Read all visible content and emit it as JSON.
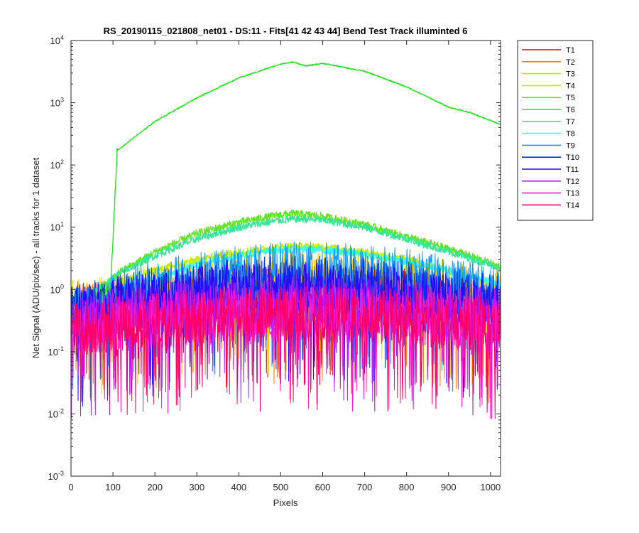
{
  "chart_data": {
    "type": "line",
    "title": "RS_20190115_021808_net01 - DS:11 - Fits[41  42  43  44]   Bend Test       Track illuminted 6",
    "xlabel": "Pixels",
    "ylabel": "Net Signal (ADU/pix/sec) - all tracks for 1 dataset",
    "xlim": [
      0,
      1024
    ],
    "ylim": [
      0.001,
      10000
    ],
    "yscale": "log",
    "grid": false,
    "legend_position": "outside-right",
    "x_ticks": [
      "0",
      "100",
      "200",
      "300",
      "400",
      "500",
      "600",
      "700",
      "800",
      "900",
      "1000"
    ],
    "y_ticks": [
      {
        "base": "10",
        "exp": "-3"
      },
      {
        "base": "10",
        "exp": "-2"
      },
      {
        "base": "10",
        "exp": "-1"
      },
      {
        "base": "10",
        "exp": "0"
      },
      {
        "base": "10",
        "exp": "1"
      },
      {
        "base": "10",
        "exp": "2"
      },
      {
        "base": "10",
        "exp": "3"
      },
      {
        "base": "10",
        "exp": "4"
      }
    ],
    "x_sample": [
      0,
      50,
      95,
      110,
      200,
      300,
      400,
      500,
      530,
      560,
      600,
      700,
      800,
      900,
      950,
      1024
    ],
    "series": [
      {
        "name": "T1",
        "color": "#e6001a",
        "values": [
          0.4,
          0.5,
          0.55,
          0.6,
          0.7,
          0.8,
          0.85,
          0.9,
          0.9,
          0.9,
          0.9,
          0.85,
          0.8,
          0.7,
          0.6,
          0.5
        ]
      },
      {
        "name": "T2",
        "color": "#ff7f00",
        "values": [
          0.45,
          0.5,
          0.55,
          0.6,
          0.7,
          0.8,
          0.9,
          0.95,
          0.95,
          0.95,
          0.95,
          0.9,
          0.85,
          0.75,
          0.65,
          0.5
        ]
      },
      {
        "name": "T3",
        "color": "#ffcc00",
        "values": [
          0.55,
          0.6,
          0.7,
          0.8,
          1.0,
          1.3,
          1.6,
          1.8,
          1.8,
          1.8,
          1.8,
          1.7,
          1.5,
          1.2,
          1.0,
          0.8
        ]
      },
      {
        "name": "T4",
        "color": "#bfef00",
        "values": [
          0.6,
          0.8,
          1.0,
          1.3,
          2.0,
          3.0,
          4.0,
          4.8,
          5.0,
          4.9,
          4.8,
          4.0,
          3.0,
          2.0,
          1.6,
          1.2
        ]
      },
      {
        "name": "T5",
        "color": "#5fe61a",
        "values": [
          0.6,
          0.9,
          1.4,
          1.8,
          4.0,
          8.0,
          12.0,
          16.0,
          16.5,
          16.0,
          15.0,
          11.0,
          7.0,
          4.5,
          3.5,
          2.3
        ]
      },
      {
        "name": "T6",
        "color": "#1fe61a",
        "values": [
          0.4,
          0.6,
          1.2,
          170,
          500,
          1200,
          2500,
          4200,
          4500,
          3900,
          4300,
          3200,
          1800,
          850,
          700,
          450
        ]
      },
      {
        "name": "T7",
        "color": "#33e699",
        "values": [
          0.7,
          0.9,
          1.3,
          1.7,
          3.5,
          6.5,
          10.0,
          13.0,
          13.5,
          13.5,
          13.0,
          10.0,
          6.5,
          4.0,
          3.2,
          2.2
        ]
      },
      {
        "name": "T8",
        "color": "#33ffe6",
        "values": [
          0.5,
          0.6,
          0.8,
          1.0,
          1.5,
          2.5,
          3.5,
          4.3,
          4.4,
          4.4,
          4.3,
          3.6,
          2.8,
          2.0,
          1.7,
          1.2
        ]
      },
      {
        "name": "T9",
        "color": "#1a99ff",
        "values": [
          0.5,
          0.6,
          0.7,
          0.8,
          1.2,
          1.6,
          2.0,
          2.3,
          2.3,
          2.3,
          2.3,
          2.1,
          1.8,
          1.4,
          1.2,
          0.9
        ]
      },
      {
        "name": "T10",
        "color": "#0033e6",
        "values": [
          0.5,
          0.55,
          0.6,
          0.7,
          0.9,
          1.1,
          1.3,
          1.4,
          1.4,
          1.4,
          1.4,
          1.3,
          1.1,
          0.9,
          0.8,
          0.7
        ]
      },
      {
        "name": "T11",
        "color": "#3300ff",
        "values": [
          0.45,
          0.5,
          0.55,
          0.6,
          0.75,
          0.9,
          1.0,
          1.1,
          1.1,
          1.1,
          1.1,
          1.0,
          0.9,
          0.75,
          0.65,
          0.55
        ]
      },
      {
        "name": "T12",
        "color": "#b31aff",
        "values": [
          0.3,
          0.35,
          0.4,
          0.45,
          0.5,
          0.55,
          0.6,
          0.65,
          0.65,
          0.65,
          0.65,
          0.6,
          0.55,
          0.5,
          0.45,
          0.4
        ]
      },
      {
        "name": "T13",
        "color": "#ff1acc",
        "values": [
          0.25,
          0.28,
          0.3,
          0.32,
          0.35,
          0.4,
          0.42,
          0.45,
          0.45,
          0.45,
          0.45,
          0.42,
          0.4,
          0.35,
          0.32,
          0.3
        ]
      },
      {
        "name": "T14",
        "color": "#ff0066",
        "values": [
          0.25,
          0.28,
          0.3,
          0.32,
          0.35,
          0.4,
          0.42,
          0.45,
          0.45,
          0.45,
          0.45,
          0.42,
          0.4,
          0.35,
          0.32,
          0.3
        ]
      }
    ]
  }
}
